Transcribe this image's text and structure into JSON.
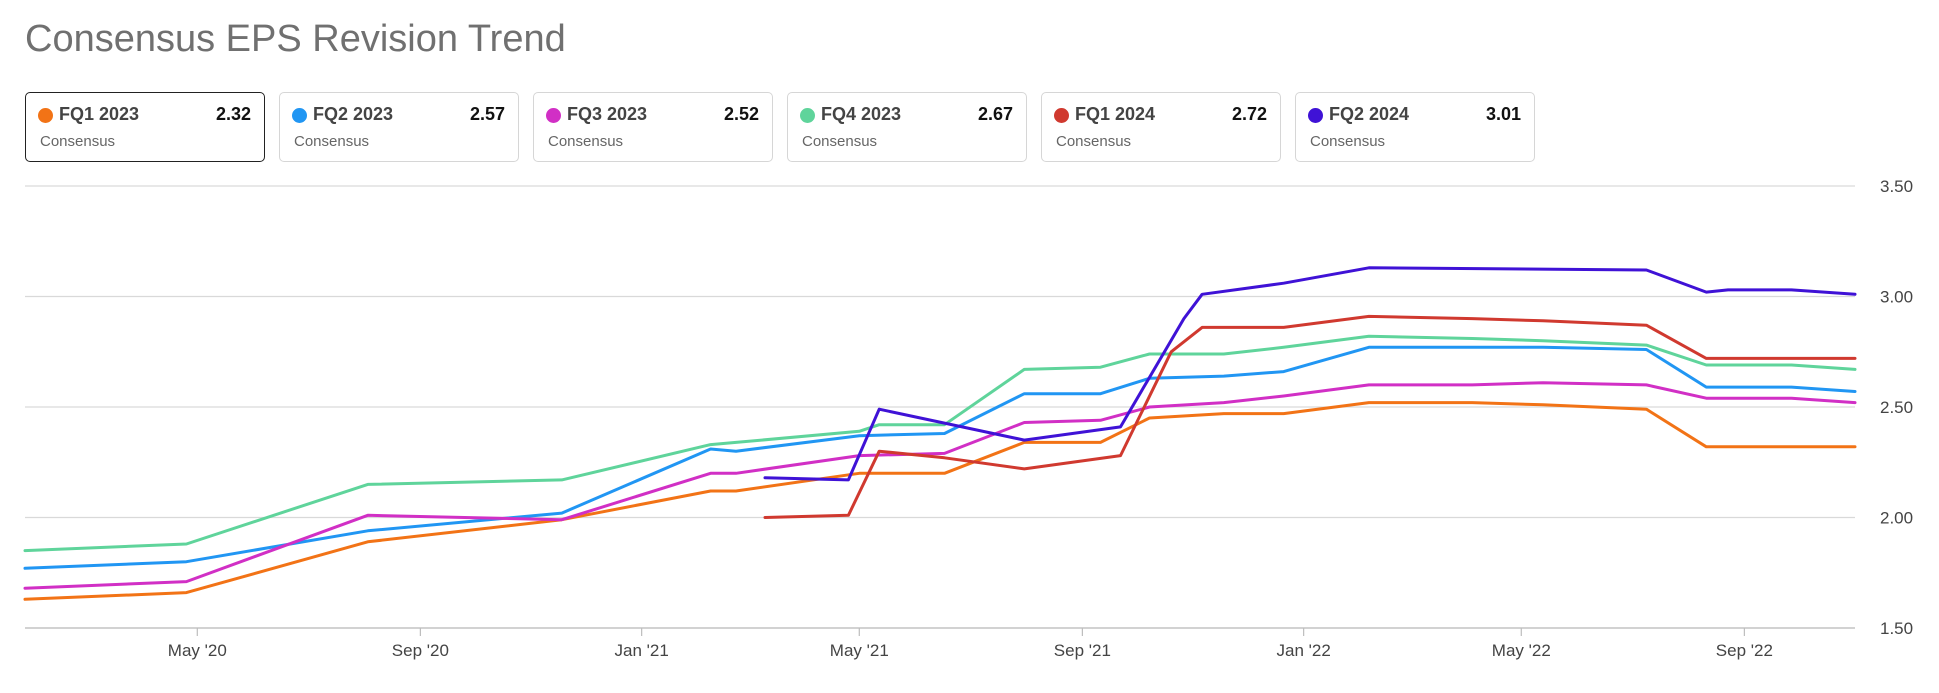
{
  "title": "Consensus EPS Revision Trend",
  "cards": [
    {
      "name": "FQ1 2023",
      "value": "2.32",
      "sub": "Consensus",
      "color": "#f27316",
      "selected": true
    },
    {
      "name": "FQ2 2023",
      "value": "2.57",
      "sub": "Consensus",
      "color": "#2196f3",
      "selected": false
    },
    {
      "name": "FQ3 2023",
      "value": "2.52",
      "sub": "Consensus",
      "color": "#d12fc5",
      "selected": false
    },
    {
      "name": "FQ4 2023",
      "value": "2.67",
      "sub": "Consensus",
      "color": "#5fd49b",
      "selected": false
    },
    {
      "name": "FQ1 2024",
      "value": "2.72",
      "sub": "Consensus",
      "color": "#d0392f",
      "selected": false
    },
    {
      "name": "FQ2 2024",
      "value": "3.01",
      "sub": "Consensus",
      "color": "#3f12d6",
      "selected": false
    }
  ],
  "chart_data": {
    "type": "line",
    "title": "Consensus EPS Revision Trend",
    "xlabel": "",
    "ylabel": "",
    "xlim": [
      "2020-01-27",
      "2022-11-01"
    ],
    "ylim": [
      1.5,
      3.5
    ],
    "y_ticks": [
      "1.50",
      "2.00",
      "2.50",
      "3.00",
      "3.50"
    ],
    "x_ticks": [
      {
        "date": "2020-05-01",
        "label": "May '20"
      },
      {
        "date": "2020-09-01",
        "label": "Sep '20"
      },
      {
        "date": "2021-01-01",
        "label": "Jan '21"
      },
      {
        "date": "2021-05-01",
        "label": "May '21"
      },
      {
        "date": "2021-09-01",
        "label": "Sep '21"
      },
      {
        "date": "2022-01-01",
        "label": "Jan '22"
      },
      {
        "date": "2022-05-01",
        "label": "May '22"
      },
      {
        "date": "2022-09-01",
        "label": "Sep '22"
      }
    ],
    "grid": true,
    "y_axis_side": "right",
    "series": [
      {
        "name": "FQ1 2023",
        "color": "#f27316",
        "points": [
          [
            "2020-01-27",
            1.63
          ],
          [
            "2020-04-25",
            1.66
          ],
          [
            "2020-08-03",
            1.89
          ],
          [
            "2020-11-18",
            1.99
          ],
          [
            "2021-02-08",
            2.12
          ],
          [
            "2021-02-22",
            2.12
          ],
          [
            "2021-05-01",
            2.2
          ],
          [
            "2021-06-17",
            2.2
          ],
          [
            "2021-07-31",
            2.34
          ],
          [
            "2021-09-11",
            2.34
          ],
          [
            "2021-10-08",
            2.45
          ],
          [
            "2021-11-18",
            2.47
          ],
          [
            "2021-12-21",
            2.47
          ],
          [
            "2022-02-06",
            2.52
          ],
          [
            "2022-04-04",
            2.52
          ],
          [
            "2022-05-13",
            2.51
          ],
          [
            "2022-07-09",
            2.49
          ],
          [
            "2022-08-11",
            2.32
          ],
          [
            "2022-09-27",
            2.32
          ],
          [
            "2022-11-01",
            2.32
          ]
        ]
      },
      {
        "name": "FQ2 2023",
        "color": "#2196f3",
        "points": [
          [
            "2020-01-27",
            1.77
          ],
          [
            "2020-04-25",
            1.8
          ],
          [
            "2020-08-03",
            1.94
          ],
          [
            "2020-11-18",
            2.02
          ],
          [
            "2021-02-08",
            2.31
          ],
          [
            "2021-02-22",
            2.3
          ],
          [
            "2021-05-01",
            2.37
          ],
          [
            "2021-06-17",
            2.38
          ],
          [
            "2021-07-31",
            2.56
          ],
          [
            "2021-09-11",
            2.56
          ],
          [
            "2021-10-08",
            2.63
          ],
          [
            "2021-11-18",
            2.64
          ],
          [
            "2021-12-21",
            2.66
          ],
          [
            "2022-02-06",
            2.77
          ],
          [
            "2022-04-04",
            2.77
          ],
          [
            "2022-05-13",
            2.77
          ],
          [
            "2022-07-09",
            2.76
          ],
          [
            "2022-08-11",
            2.59
          ],
          [
            "2022-09-27",
            2.59
          ],
          [
            "2022-11-01",
            2.57
          ]
        ]
      },
      {
        "name": "FQ3 2023",
        "color": "#d12fc5",
        "points": [
          [
            "2020-01-27",
            1.68
          ],
          [
            "2020-04-25",
            1.71
          ],
          [
            "2020-08-03",
            2.01
          ],
          [
            "2020-11-18",
            1.99
          ],
          [
            "2021-02-08",
            2.2
          ],
          [
            "2021-02-22",
            2.2
          ],
          [
            "2021-05-01",
            2.28
          ],
          [
            "2021-06-17",
            2.29
          ],
          [
            "2021-07-31",
            2.43
          ],
          [
            "2021-09-11",
            2.44
          ],
          [
            "2021-10-08",
            2.5
          ],
          [
            "2021-11-18",
            2.52
          ],
          [
            "2021-12-21",
            2.55
          ],
          [
            "2022-02-06",
            2.6
          ],
          [
            "2022-04-04",
            2.6
          ],
          [
            "2022-05-13",
            2.61
          ],
          [
            "2022-07-09",
            2.6
          ],
          [
            "2022-08-11",
            2.54
          ],
          [
            "2022-09-27",
            2.54
          ],
          [
            "2022-11-01",
            2.52
          ]
        ]
      },
      {
        "name": "FQ4 2023",
        "color": "#5fd49b",
        "points": [
          [
            "2020-01-27",
            1.85
          ],
          [
            "2020-04-25",
            1.88
          ],
          [
            "2020-08-03",
            2.15
          ],
          [
            "2020-11-18",
            2.17
          ],
          [
            "2021-02-08",
            2.33
          ],
          [
            "2021-02-22",
            2.34
          ],
          [
            "2021-05-01",
            2.39
          ],
          [
            "2021-05-12",
            2.42
          ],
          [
            "2021-06-17",
            2.42
          ],
          [
            "2021-07-31",
            2.67
          ],
          [
            "2021-09-11",
            2.68
          ],
          [
            "2021-10-08",
            2.74
          ],
          [
            "2021-11-18",
            2.74
          ],
          [
            "2021-12-21",
            2.77
          ],
          [
            "2022-02-06",
            2.82
          ],
          [
            "2022-04-04",
            2.81
          ],
          [
            "2022-05-13",
            2.8
          ],
          [
            "2022-07-09",
            2.78
          ],
          [
            "2022-08-11",
            2.69
          ],
          [
            "2022-09-27",
            2.69
          ],
          [
            "2022-11-01",
            2.67
          ]
        ]
      },
      {
        "name": "FQ1 2024",
        "color": "#d0392f",
        "points": [
          [
            "2021-03-10",
            2.0
          ],
          [
            "2021-04-25",
            2.01
          ],
          [
            "2021-05-12",
            2.3
          ],
          [
            "2021-06-17",
            2.27
          ],
          [
            "2021-07-31",
            2.22
          ],
          [
            "2021-09-22",
            2.28
          ],
          [
            "2021-10-20",
            2.75
          ],
          [
            "2021-11-06",
            2.86
          ],
          [
            "2021-12-21",
            2.86
          ],
          [
            "2022-02-06",
            2.91
          ],
          [
            "2022-04-04",
            2.9
          ],
          [
            "2022-05-13",
            2.89
          ],
          [
            "2022-07-09",
            2.87
          ],
          [
            "2022-08-11",
            2.72
          ],
          [
            "2022-09-27",
            2.72
          ],
          [
            "2022-11-01",
            2.72
          ]
        ]
      },
      {
        "name": "FQ2 2024",
        "color": "#3f12d6",
        "points": [
          [
            "2021-03-10",
            2.18
          ],
          [
            "2021-04-25",
            2.17
          ],
          [
            "2021-05-12",
            2.49
          ],
          [
            "2021-07-31",
            2.35
          ],
          [
            "2021-09-22",
            2.41
          ],
          [
            "2021-10-27",
            2.9
          ],
          [
            "2021-11-06",
            3.01
          ],
          [
            "2021-12-21",
            3.06
          ],
          [
            "2022-02-06",
            3.13
          ],
          [
            "2022-07-09",
            3.12
          ],
          [
            "2022-08-11",
            3.02
          ],
          [
            "2022-08-23",
            3.03
          ],
          [
            "2022-09-27",
            3.03
          ],
          [
            "2022-11-01",
            3.01
          ]
        ]
      }
    ]
  }
}
